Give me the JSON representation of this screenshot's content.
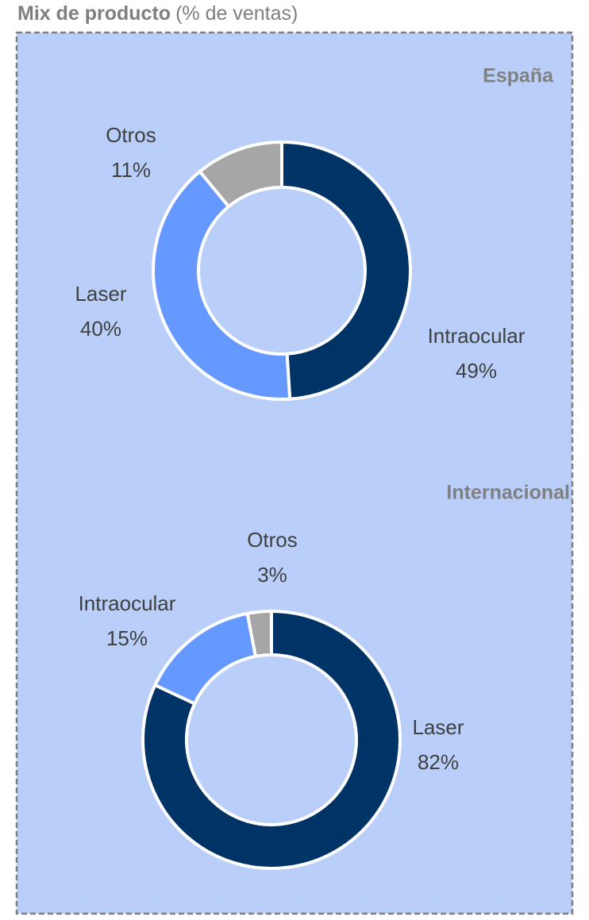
{
  "title": "Mix de producto",
  "subtitle": "(% de ventas)",
  "chart_data": [
    {
      "type": "pie",
      "title": "España",
      "categories": [
        "Intraocular",
        "Laser",
        "Otros"
      ],
      "values": [
        49,
        40,
        11
      ],
      "value_labels": [
        "49%",
        "40%",
        "11%"
      ],
      "colors": [
        "#003366",
        "#6699ff",
        "#a6a6a6"
      ]
    },
    {
      "type": "pie",
      "title": "Internacional",
      "categories": [
        "Laser",
        "Intraocular",
        "Otros"
      ],
      "values": [
        82,
        15,
        3
      ],
      "value_labels": [
        "82%",
        "15%",
        "3%"
      ],
      "colors": [
        "#003366",
        "#6699ff",
        "#a6a6a6"
      ]
    }
  ]
}
